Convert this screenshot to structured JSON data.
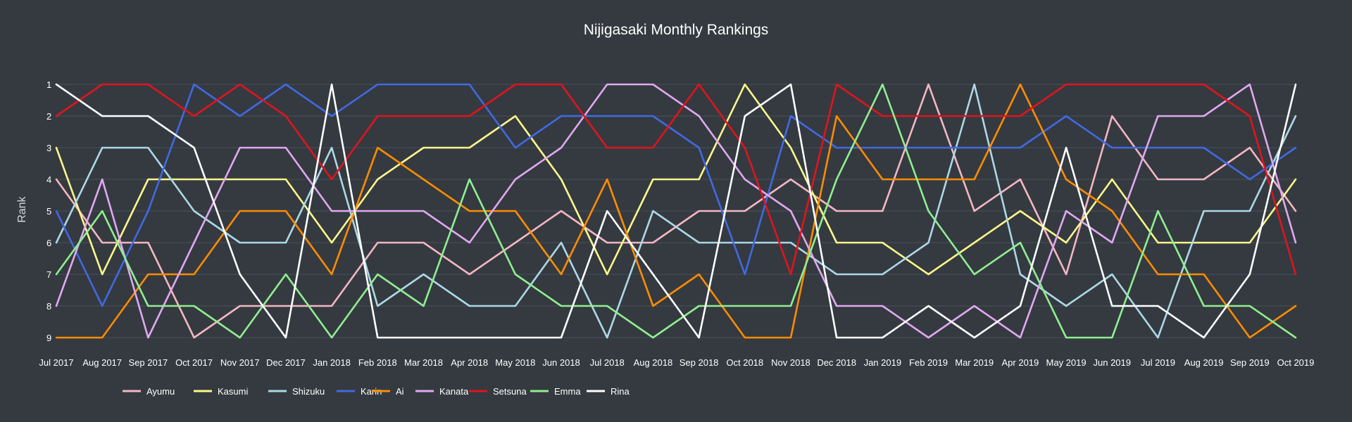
{
  "chart_data": {
    "type": "line",
    "title": "Nijigasaki Monthly Rankings",
    "xlabel": "",
    "ylabel": "Rank",
    "ylim": [
      1,
      9
    ],
    "y_inverted": true,
    "grid": true,
    "legend_position": "bottom-left",
    "categories": [
      "Jul 2017",
      "Aug 2017",
      "Sep 2017",
      "Oct 2017",
      "Nov 2017",
      "Dec 2017",
      "Jan 2018",
      "Feb 2018",
      "Mar 2018",
      "Apr 2018",
      "May 2018",
      "Jun 2018",
      "Jul 2018",
      "Aug 2018",
      "Sep 2018",
      "Oct 2018",
      "Nov 2018",
      "Dec 2018",
      "Jan 2019",
      "Feb 2019",
      "Mar 2019",
      "Apr 2019",
      "May 2019",
      "Jun 2019",
      "Jul 2019",
      "Aug 2019",
      "Sep 2019",
      "Oct 2019"
    ],
    "y_ticks": [
      1,
      2,
      3,
      4,
      5,
      6,
      7,
      8,
      9
    ],
    "series": [
      {
        "name": "Ayumu",
        "color": "#f4b6c2",
        "values": [
          4,
          6,
          6,
          9,
          8,
          8,
          8,
          6,
          6,
          7,
          6,
          5,
          6,
          6,
          5,
          5,
          4,
          5,
          5,
          1,
          5,
          4,
          7,
          2,
          4,
          4,
          3,
          5
        ]
      },
      {
        "name": "Kasumi",
        "color": "#fff78a",
        "values": [
          3,
          7,
          4,
          4,
          4,
          4,
          6,
          4,
          3,
          3,
          2,
          4,
          7,
          4,
          4,
          1,
          3,
          6,
          6,
          7,
          6,
          5,
          6,
          4,
          6,
          6,
          6,
          4
        ]
      },
      {
        "name": "Shizuku",
        "color": "#add8e6",
        "values": [
          6,
          3,
          3,
          5,
          6,
          6,
          3,
          8,
          7,
          8,
          8,
          6,
          9,
          5,
          6,
          6,
          6,
          7,
          7,
          6,
          1,
          7,
          8,
          7,
          9,
          5,
          5,
          2
        ]
      },
      {
        "name": "Karin",
        "color": "#4169e1",
        "values": [
          5,
          8,
          5,
          1,
          2,
          1,
          2,
          1,
          1,
          1,
          3,
          2,
          2,
          2,
          3,
          7,
          2,
          3,
          3,
          3,
          3,
          3,
          2,
          3,
          3,
          3,
          4,
          3
        ]
      },
      {
        "name": "Ai",
        "color": "#ff8c00",
        "values": [
          9,
          9,
          7,
          7,
          5,
          5,
          7,
          3,
          4,
          5,
          5,
          7,
          4,
          8,
          7,
          9,
          9,
          2,
          4,
          4,
          4,
          1,
          4,
          5,
          7,
          7,
          9,
          8
        ]
      },
      {
        "name": "Kanata",
        "color": "#e0a8f0",
        "values": [
          8,
          4,
          9,
          6,
          3,
          3,
          5,
          5,
          5,
          6,
          4,
          3,
          1,
          1,
          2,
          4,
          5,
          8,
          8,
          9,
          8,
          9,
          5,
          6,
          2,
          2,
          1,
          6
        ]
      },
      {
        "name": "Setsuna",
        "color": "#e0141e",
        "values": [
          2,
          1,
          1,
          2,
          1,
          2,
          4,
          2,
          2,
          2,
          1,
          1,
          3,
          3,
          1,
          3,
          7,
          1,
          2,
          2,
          2,
          2,
          1,
          1,
          1,
          1,
          2,
          7
        ]
      },
      {
        "name": "Emma",
        "color": "#90ee90",
        "values": [
          7,
          5,
          8,
          8,
          9,
          7,
          9,
          7,
          8,
          4,
          7,
          8,
          8,
          9,
          8,
          8,
          8,
          4,
          1,
          5,
          7,
          6,
          9,
          9,
          5,
          8,
          8,
          9
        ]
      },
      {
        "name": "Rina",
        "color": "#ffffff",
        "values": [
          1,
          2,
          2,
          3,
          7,
          9,
          1,
          9,
          9,
          9,
          9,
          9,
          5,
          7,
          9,
          2,
          1,
          9,
          9,
          8,
          9,
          8,
          3,
          8,
          8,
          9,
          7,
          1
        ]
      }
    ]
  }
}
